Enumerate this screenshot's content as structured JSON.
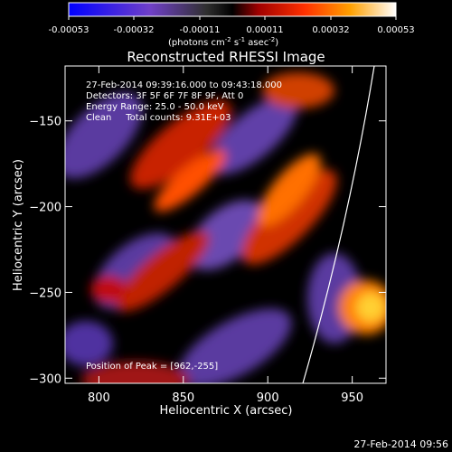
{
  "colorbar": {
    "ticks": [
      "-0.00053",
      "-0.00032",
      "-0.00011",
      "0.00011",
      "0.00032",
      "0.00053"
    ],
    "unit_label_main": "(photons cm",
    "unit_sup1": "-2",
    "unit_mid": " s",
    "unit_sup2": "-1",
    "unit_tail": " asec",
    "unit_sup3": "-2",
    "unit_close": ")"
  },
  "annotations": {
    "time_range": "27-Feb-2014 09:39:16.000 to 09:43:18.000",
    "detectors": "Detectors: 3F 5F 6F 7F 8F 9F, Att 0",
    "energy": "Energy Range: 25.0 - 50.0 keV",
    "clean": "Clean     Total counts: 9.31E+03",
    "peak": "Position of Peak = [962,-255]"
  },
  "footer": {
    "timestamp": "27-Feb-2014 09:56"
  },
  "chart_data": {
    "type": "heatmap",
    "title": "Reconstructed RHESSI Image",
    "xlabel": "Heliocentric X (arcsec)",
    "ylabel": "Heliocentric Y (arcsec)",
    "xlim": [
      780,
      970
    ],
    "ylim": [
      -303,
      -118
    ],
    "x_ticks": [
      800,
      850,
      900,
      950
    ],
    "y_ticks": [
      -150,
      -200,
      -250,
      -300
    ],
    "value_range": [
      -0.00053,
      0.00053
    ],
    "peak": [
      962,
      -255
    ],
    "colors": [
      "#0000ff",
      "#6c48c8",
      "#8048a0",
      "#000000",
      "#a00000",
      "#ff2000",
      "#ff9a00",
      "#ffd020",
      "#ffffff"
    ]
  }
}
